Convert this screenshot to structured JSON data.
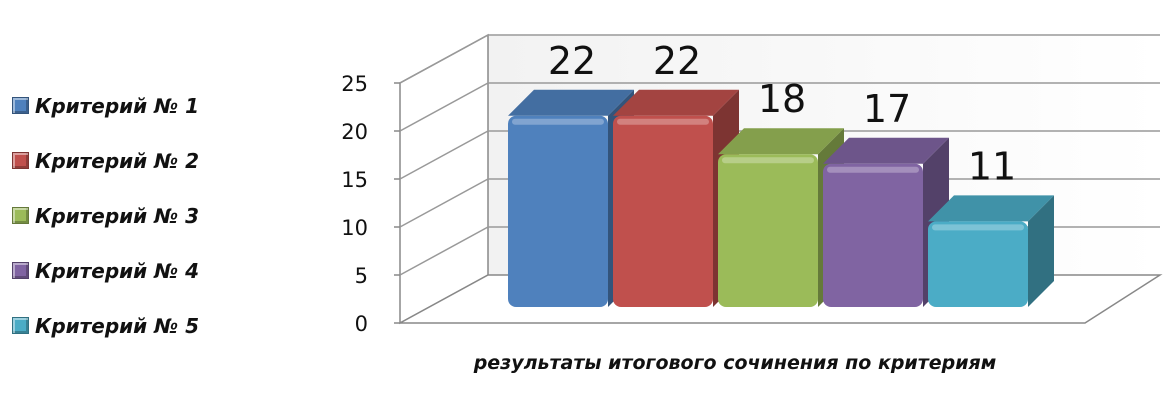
{
  "chart_data": {
    "type": "bar",
    "style": "3d-clustered-column",
    "xlabel": "результаты итогового сочинения по критериям",
    "ylabel": "",
    "ylim": [
      0,
      25
    ],
    "yticks": [
      0,
      5,
      10,
      15,
      20,
      25
    ],
    "grid": true,
    "legend_position": "left",
    "series": [
      {
        "name": "Критерий № 1",
        "value": 22,
        "color": "#4F81BD"
      },
      {
        "name": "Критерий № 2",
        "value": 22,
        "color": "#C0504D"
      },
      {
        "name": "Критерий № 3",
        "value": 18,
        "color": "#9BBB59"
      },
      {
        "name": "Критерий № 4",
        "value": 17,
        "color": "#8064A2"
      },
      {
        "name": "Критерий № 5",
        "value": 11,
        "color": "#4BACC6"
      }
    ]
  }
}
